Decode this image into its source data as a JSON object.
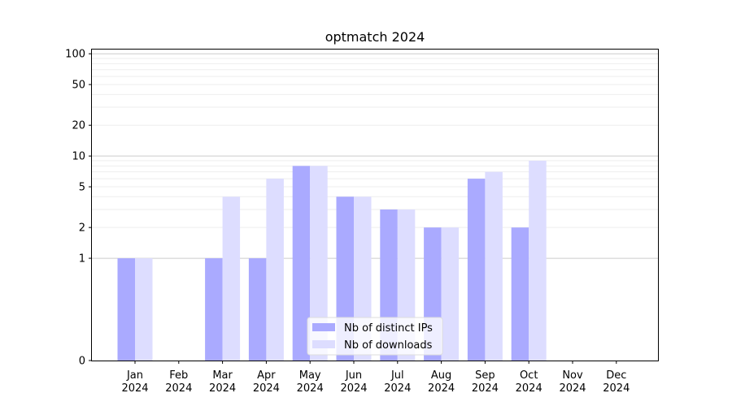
{
  "chart_data": {
    "type": "bar",
    "title": "optmatch 2024",
    "categories": [
      "Jan\n2024",
      "Feb\n2024",
      "Mar\n2024",
      "Apr\n2024",
      "May\n2024",
      "Jun\n2024",
      "Jul\n2024",
      "Aug\n2024",
      "Sep\n2024",
      "Oct\n2024",
      "Nov\n2024",
      "Dec\n2024"
    ],
    "series": [
      {
        "name": "Nb of distinct IPs",
        "values": [
          1,
          0,
          1,
          1,
          8,
          4,
          3,
          2,
          6,
          2,
          0,
          0
        ],
        "color": "#aaaaff"
      },
      {
        "name": "Nb of downloads",
        "values": [
          1,
          0,
          4,
          6,
          8,
          4,
          3,
          2,
          7,
          9,
          0,
          0
        ],
        "color": "#ddddff"
      }
    ],
    "yscale": "symlog",
    "yticks": [
      0,
      1,
      2,
      5,
      10,
      20,
      50,
      100
    ],
    "ylim": [
      0,
      110
    ],
    "grid": true,
    "legend": "bottom-center"
  }
}
